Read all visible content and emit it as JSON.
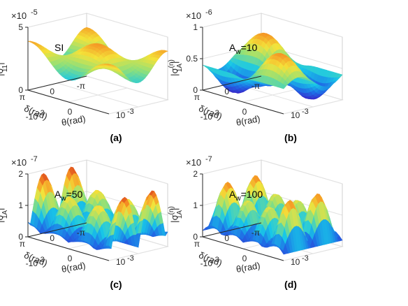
{
  "chart_data": [
    {
      "type": "surface",
      "panel_label": "(a)",
      "annotation": "SI",
      "multiplier": "×10",
      "exponent": "-5",
      "zlabel": "|σ11(n)|",
      "zlabel_main": "|σ",
      "zlabel_sup": "(n)",
      "zlabel_sub": "11",
      "zlabel_end": "|",
      "zlim": [
        0,
        5
      ],
      "z_ticks": [
        "0",
        "5"
      ],
      "xlabel": "θ(rad)",
      "x_ticks": [
        "-10",
        "-3",
        "10",
        "-3"
      ],
      "ylabel": "δ(rad)",
      "y_ticks": [
        "π",
        "0",
        "-π"
      ],
      "z_base": 2.9,
      "z_amp": 1.0
    },
    {
      "type": "surface",
      "panel_label": "(b)",
      "annotation_main": "A",
      "annotation_sub": "w",
      "annotation_end": "=10",
      "multiplier": "×10",
      "exponent": "-6",
      "zlabel_main": "|σ",
      "zlabel_sup": "(n)",
      "zlabel_sub": "1A",
      "zlabel_end": "|",
      "zlim": [
        0,
        1
      ],
      "z_ticks": [
        "0",
        "0.5",
        "1"
      ],
      "xlabel": "θ(rad)",
      "x_ticks": [
        "-10",
        "-3",
        "10",
        "-3"
      ],
      "ylabel": "δ(rad)",
      "y_ticks": [
        "π",
        "0",
        "-π"
      ]
    },
    {
      "type": "surface",
      "panel_label": "(c)",
      "annotation_main": "A",
      "annotation_sub": "w",
      "annotation_end": "=50",
      "multiplier": "×10",
      "exponent": "-7",
      "zlabel_main": "|σ",
      "zlabel_sup": "(n)",
      "zlabel_sub": "1A",
      "zlabel_end": "|",
      "zlim": [
        0,
        2
      ],
      "z_ticks": [
        "0",
        "1",
        "2"
      ],
      "xlabel": "θ(rad)",
      "x_ticks": [
        "-10",
        "-3",
        "10",
        "-3"
      ],
      "ylabel": "δ(rad)",
      "y_ticks": [
        "π",
        "0",
        "-π"
      ]
    },
    {
      "type": "surface",
      "panel_label": "(d)",
      "annotation_main": "A",
      "annotation_sub": "w",
      "annotation_end": "=100",
      "multiplier": "×10",
      "exponent": "-7",
      "zlabel_main": "|σ",
      "zlabel_sup": "(n)",
      "zlabel_sub": "1A",
      "zlabel_end": "|",
      "zlim": [
        0,
        2
      ],
      "z_ticks": [
        "0",
        "1",
        "2"
      ],
      "xlabel": "θ(rad)",
      "x_ticks": [
        "-10",
        "-3",
        "10",
        "-3"
      ],
      "ylabel": "δ(rad)",
      "y_ticks": [
        "π",
        "0",
        "-π"
      ]
    }
  ],
  "colormap": [
    "#3a22c8",
    "#1f6fe6",
    "#18c8e8",
    "#8ee07a",
    "#f4e23a",
    "#f58a22",
    "#c8161c"
  ]
}
